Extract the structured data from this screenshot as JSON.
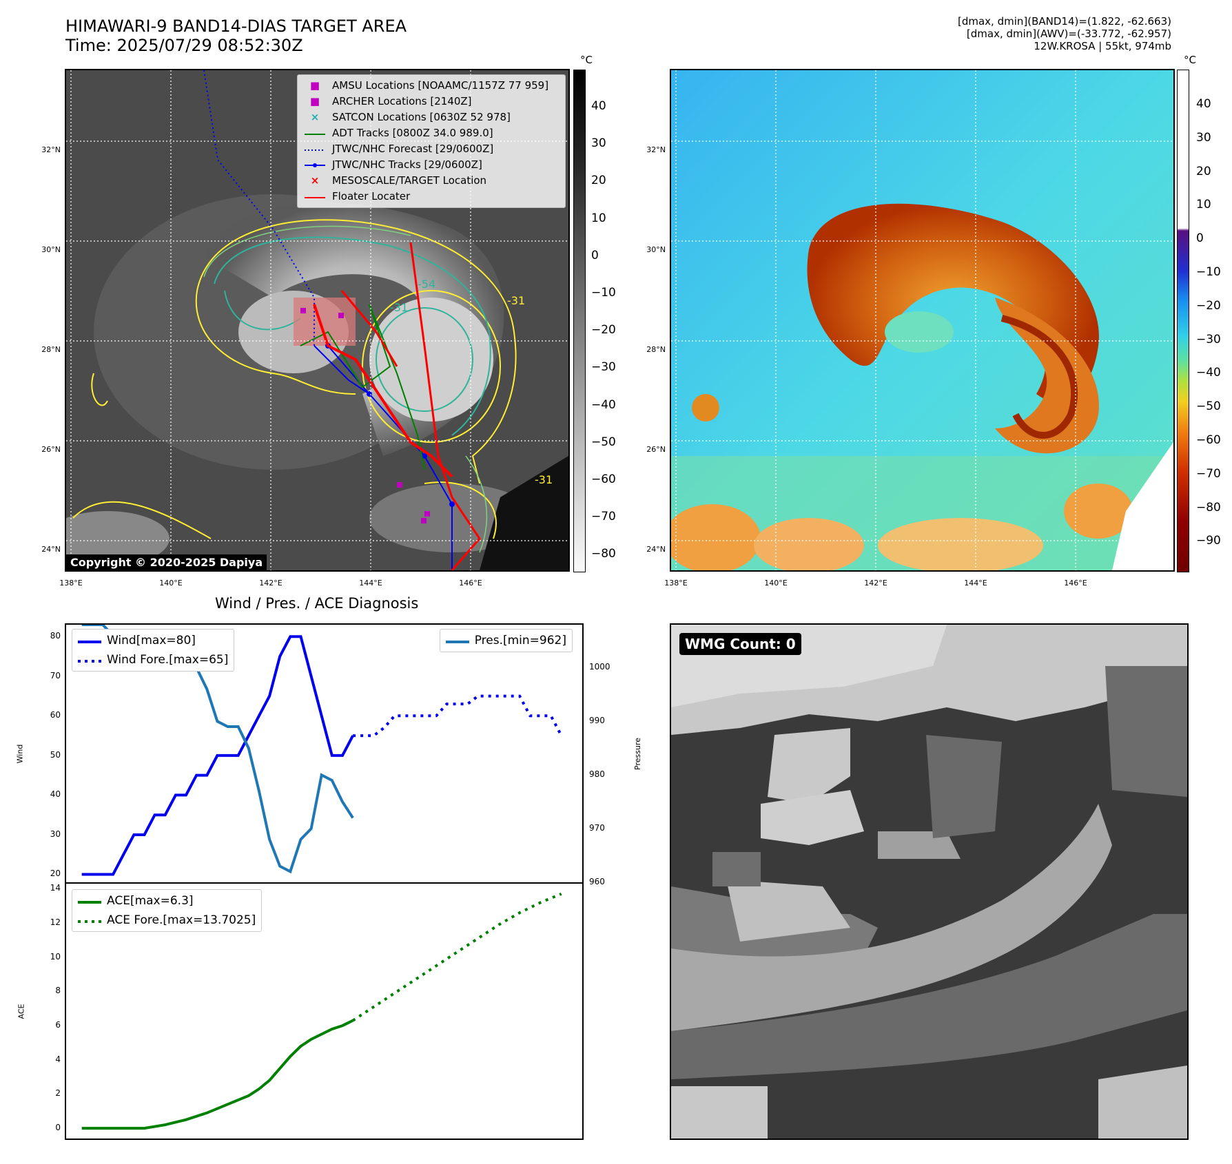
{
  "header": {
    "title_line1": "HIMAWARI-9 BAND14-DIAS TARGET AREA",
    "title_line2": "Time: 2025/07/29 08:52:30Z",
    "info_line1": "[dmax, dmin](BAND14)=(1.822, -62.663)",
    "info_line2": "[dmax, dmin](AWV)=(-33.772, -62.957)",
    "info_line3": "12W.KROSA | 55kt, 974mb"
  },
  "map": {
    "lat_labels": [
      "32°N",
      "30°N",
      "28°N",
      "26°N",
      "24°N"
    ],
    "lon_labels": [
      "138°E",
      "140°E",
      "142°E",
      "144°E",
      "146°E"
    ],
    "copyright": "Copyright © 2020-2025 Dapiya",
    "contour_labels": [
      "-54",
      "-31",
      "-31",
      "-31",
      "-54"
    ]
  },
  "colorbar_left": {
    "unit": "°C",
    "ticks": [
      "40",
      "30",
      "20",
      "10",
      "0",
      "−10",
      "−20",
      "−30",
      "−40",
      "−50",
      "−60",
      "−70",
      "−80"
    ]
  },
  "colorbar_right": {
    "unit": "°C",
    "ticks": [
      "40",
      "30",
      "20",
      "10",
      "0",
      "−10",
      "−20",
      "−30",
      "−40",
      "−50",
      "−60",
      "−70",
      "−80",
      "−90"
    ]
  },
  "legend": {
    "items": [
      {
        "label": "AMSU Locations [NOAAMC/1157Z 77 959]",
        "color": "#c000c0",
        "symbol": "■"
      },
      {
        "label": "ARCHER Locations [2140Z]",
        "color": "#c000c0",
        "symbol": "■"
      },
      {
        "label": "SATCON Locations [0630Z 52 978]",
        "color": "#20b0b0",
        "symbol": "×"
      },
      {
        "label": "ADT Tracks [0800Z 34.0 989.0]",
        "color": "#008000",
        "symbol": "line"
      },
      {
        "label": "JTWC/NHC Forecast [29/0600Z]",
        "color": "#0000ff",
        "symbol": "dotted"
      },
      {
        "label": "JTWC/NHC Tracks [29/0600Z]",
        "color": "#0000ff",
        "symbol": "line-dot"
      },
      {
        "label": "MESOSCALE/TARGET Location",
        "color": "#ff0000",
        "symbol": "×"
      },
      {
        "label": "Floater Locater",
        "color": "#ff0000",
        "symbol": "line"
      }
    ]
  },
  "diagnosis": {
    "title": "Wind / Pres. / ACE Diagnosis",
    "wind_ylabel": "Wind",
    "pres_ylabel": "Pressure",
    "ace_ylabel": "ACE",
    "legend_wind": "Wind[max=80]",
    "legend_wind_fore": "Wind Fore.[max=65]",
    "legend_pres": "Pres.[min=962]",
    "legend_ace": "ACE[max=6.3]",
    "legend_ace_fore": "ACE Fore.[max=13.7025]"
  },
  "wmg": {
    "label": "WMG Count: 0"
  },
  "chart_data": [
    {
      "type": "line",
      "title": "Wind / Pres. / ACE Diagnosis",
      "ylabel": "Wind",
      "ylim": [
        18,
        83
      ],
      "y2label": "Pressure",
      "y2lim": [
        960,
        1008
      ],
      "x": [
        0,
        1,
        2,
        3,
        4,
        5,
        6,
        7,
        8,
        9,
        10,
        11,
        12,
        13,
        14,
        15,
        16,
        17,
        18,
        19,
        20,
        21,
        22,
        23,
        24,
        25,
        26,
        27,
        28,
        29,
        30,
        31,
        32,
        33,
        34,
        35,
        36,
        37,
        38,
        39,
        40,
        41,
        42,
        43,
        44,
        45,
        46
      ],
      "series": [
        {
          "name": "Wind[max=80]",
          "style": "solid",
          "color": "#0000ee",
          "x": [
            0,
            1,
            2,
            3,
            4,
            5,
            6,
            7,
            8,
            9,
            10,
            11,
            12,
            13,
            14,
            15,
            16,
            17,
            18,
            19,
            20,
            21,
            22,
            23,
            24,
            25,
            26
          ],
          "values": [
            20,
            20,
            20,
            20,
            25,
            30,
            30,
            35,
            35,
            40,
            40,
            45,
            45,
            50,
            50,
            50,
            55,
            60,
            65,
            75,
            80,
            80,
            70,
            60,
            50,
            50,
            55
          ]
        },
        {
          "name": "Wind Fore.[max=65]",
          "style": "dotted",
          "color": "#0000ee",
          "x": [
            26,
            27,
            28,
            29,
            30,
            31,
            32,
            33,
            34,
            35,
            36,
            37,
            38,
            39,
            40,
            41,
            42,
            43,
            44,
            45,
            46
          ],
          "values": [
            55,
            55,
            55,
            57,
            60,
            60,
            60,
            60,
            60,
            63,
            63,
            63,
            65,
            65,
            65,
            65,
            65,
            60,
            60,
            60,
            55
          ]
        },
        {
          "name": "Pres.[min=962]",
          "style": "solid",
          "color": "#1f77b4",
          "axis": "right",
          "x": [
            0,
            1,
            2,
            3,
            4,
            5,
            6,
            7,
            8,
            9,
            10,
            11,
            12,
            13,
            14,
            15,
            16,
            17,
            18,
            19,
            20,
            21,
            22,
            23,
            24,
            25,
            26
          ],
          "values": [
            1008,
            1008,
            1008,
            1006,
            1006,
            1005,
            1005,
            1002,
            1002,
            1000,
            1000,
            1000,
            996,
            990,
            989,
            989,
            985,
            977,
            968,
            963,
            962,
            968,
            970,
            980,
            979,
            975,
            972
          ]
        }
      ]
    },
    {
      "type": "line",
      "ylabel": "ACE",
      "ylim": [
        -0.6,
        14.3
      ],
      "series": [
        {
          "name": "ACE[max=6.3]",
          "style": "solid",
          "color": "#008000",
          "x": [
            0,
            2,
            4,
            6,
            8,
            10,
            12,
            14,
            16,
            17,
            18,
            19,
            20,
            21,
            22,
            23,
            24,
            25,
            26
          ],
          "values": [
            0,
            0,
            0,
            0,
            0.2,
            0.5,
            0.9,
            1.4,
            1.9,
            2.3,
            2.8,
            3.5,
            4.2,
            4.8,
            5.2,
            5.5,
            5.8,
            6.0,
            6.3
          ]
        },
        {
          "name": "ACE Fore.[max=13.7025]",
          "style": "dotted",
          "color": "#008000",
          "x": [
            26,
            28,
            30,
            32,
            34,
            36,
            38,
            40,
            42,
            44,
            46
          ],
          "values": [
            6.3,
            7.1,
            7.9,
            8.7,
            9.5,
            10.3,
            11.1,
            11.9,
            12.6,
            13.2,
            13.7025
          ]
        }
      ]
    }
  ]
}
